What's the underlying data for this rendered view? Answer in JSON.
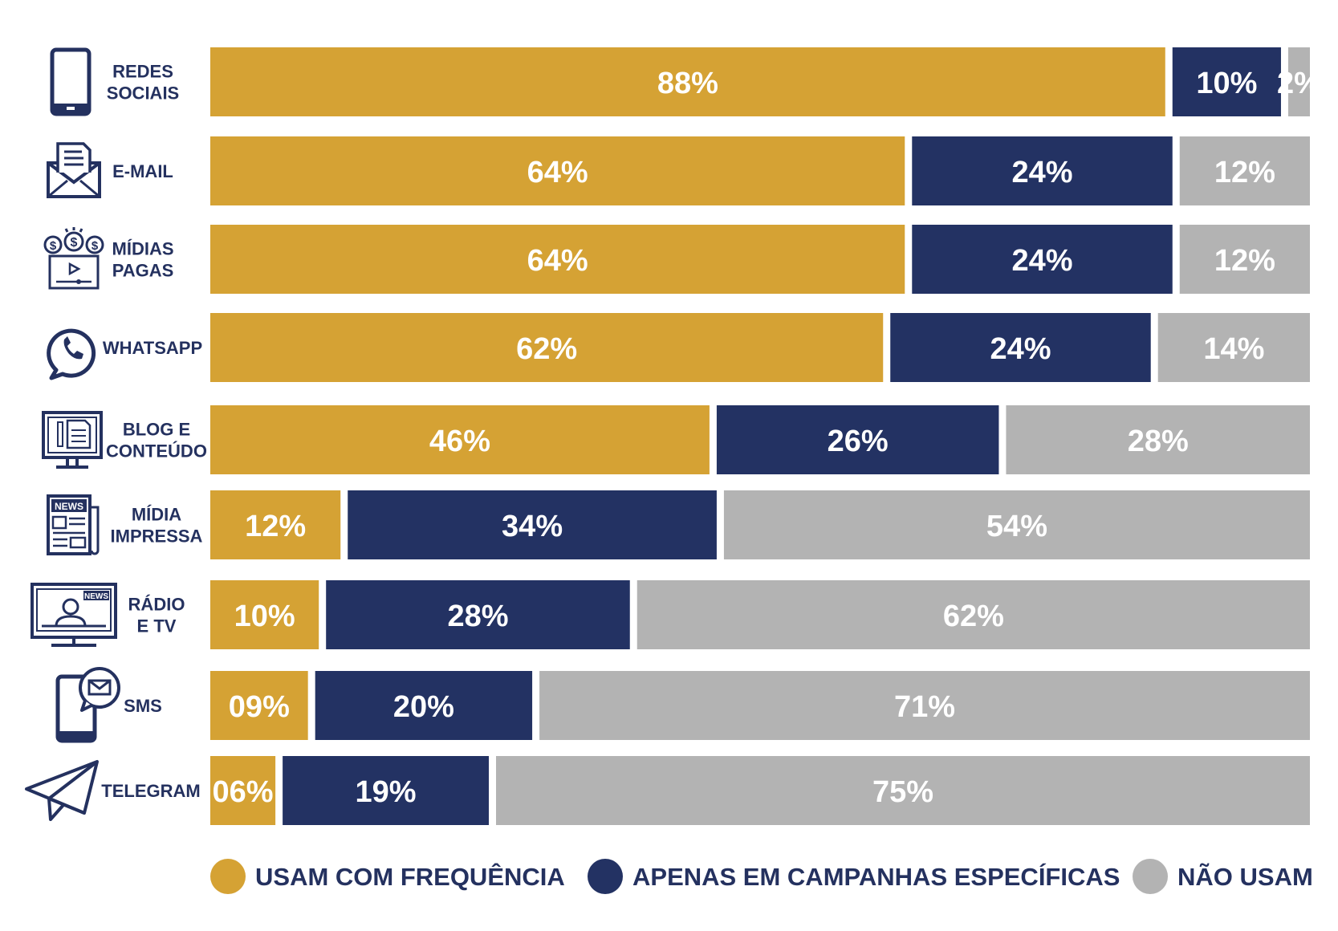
{
  "chart_data": {
    "type": "bar",
    "orientation": "horizontal",
    "stacked": true,
    "categories": [
      [
        "REDES",
        "SOCIAIS"
      ],
      [
        "E-MAIL"
      ],
      [
        "MÍDIAS",
        "PAGAS"
      ],
      [
        "WHATSAPP"
      ],
      [
        "BLOG E",
        "CONTEÚDO"
      ],
      [
        "MÍDIA",
        "IMPRESSA"
      ],
      [
        "RÁDIO",
        "E TV"
      ],
      [
        "SMS"
      ],
      [
        "TELEGRAM"
      ]
    ],
    "icons": [
      "smartphone-icon",
      "email-icon",
      "paid-media-icon",
      "whatsapp-icon",
      "blog-monitor-icon",
      "newspaper-icon",
      "tv-news-icon",
      "sms-phone-icon",
      "telegram-icon"
    ],
    "series": [
      {
        "name": "USAM COM FREQUÊNCIA",
        "color": "#d5a234",
        "values": [
          88,
          64,
          64,
          62,
          46,
          12,
          10,
          9,
          6
        ],
        "labels": [
          "88%",
          "64%",
          "64%",
          "62%",
          "46%",
          "12%",
          "10%",
          "09%",
          "06%"
        ]
      },
      {
        "name": "APENAS EM CAMPANHAS ESPECÍFICAS",
        "color": "#233263",
        "values": [
          10,
          24,
          24,
          24,
          26,
          34,
          28,
          20,
          19
        ],
        "labels": [
          "10%",
          "24%",
          "24%",
          "24%",
          "26%",
          "34%",
          "28%",
          "20%",
          "19%"
        ]
      },
      {
        "name": "NÃO USAM",
        "color": "#b3b3b3",
        "values": [
          2,
          12,
          12,
          14,
          28,
          54,
          62,
          71,
          75
        ],
        "labels": [
          "2%",
          "12%",
          "12%",
          "14%",
          "28%",
          "54%",
          "62%",
          "71%",
          "75%"
        ]
      }
    ],
    "xlim": [
      0,
      100
    ],
    "legend_position": "bottom",
    "grid": false
  }
}
